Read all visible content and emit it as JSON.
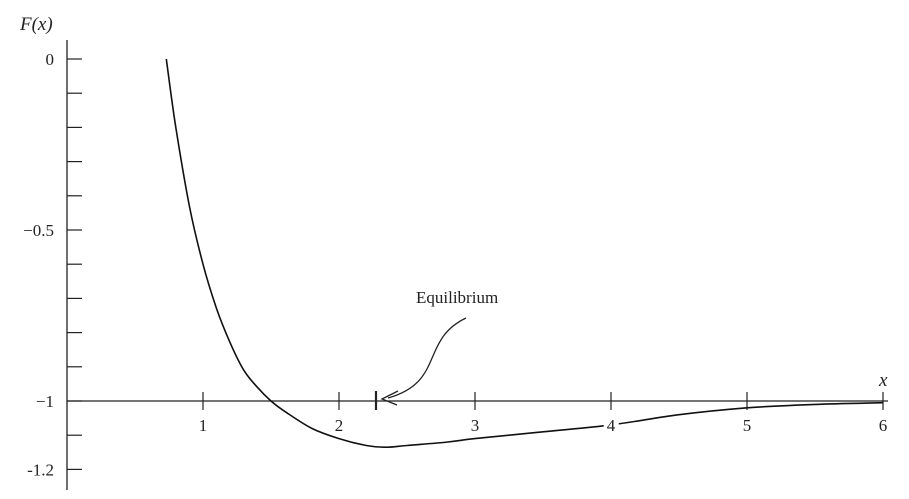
{
  "chart_data": {
    "type": "line",
    "title": "",
    "xlabel": "x",
    "ylabel": "F(x)",
    "xlim": [
      0,
      6
    ],
    "ylim": [
      -1.25,
      0
    ],
    "x_ticks": [
      1,
      2,
      3,
      4,
      5,
      6
    ],
    "x_tick_labels": [
      "1",
      "2",
      "3",
      "4",
      "5",
      "6"
    ],
    "y_labeled_ticks": [
      0,
      -0.5,
      -1,
      -1.2
    ],
    "y_tick_labels": [
      "0",
      "−0.5",
      "−1",
      "-1.2"
    ],
    "y_minor_step": 0.1,
    "grid": false,
    "series": [
      {
        "x": [
          0.73,
          0.8,
          0.9,
          1.0,
          1.1,
          1.2,
          1.3,
          1.4,
          1.5,
          1.6,
          1.8,
          2.0,
          2.2,
          2.35,
          2.5,
          2.8,
          3.0,
          3.5,
          4.0,
          4.5,
          5.0,
          5.5,
          6.0
        ],
        "y": [
          0.0,
          -0.2,
          -0.43,
          -0.6,
          -0.73,
          -0.83,
          -0.91,
          -0.96,
          -1.0,
          -1.03,
          -1.08,
          -1.11,
          -1.13,
          -1.135,
          -1.13,
          -1.12,
          -1.11,
          -1.09,
          -1.07,
          -1.04,
          -1.02,
          -1.01,
          -1.005
        ]
      }
    ],
    "annotations": [
      {
        "text": "Equilibrium",
        "x": 2.3,
        "y": -1.0
      }
    ]
  }
}
